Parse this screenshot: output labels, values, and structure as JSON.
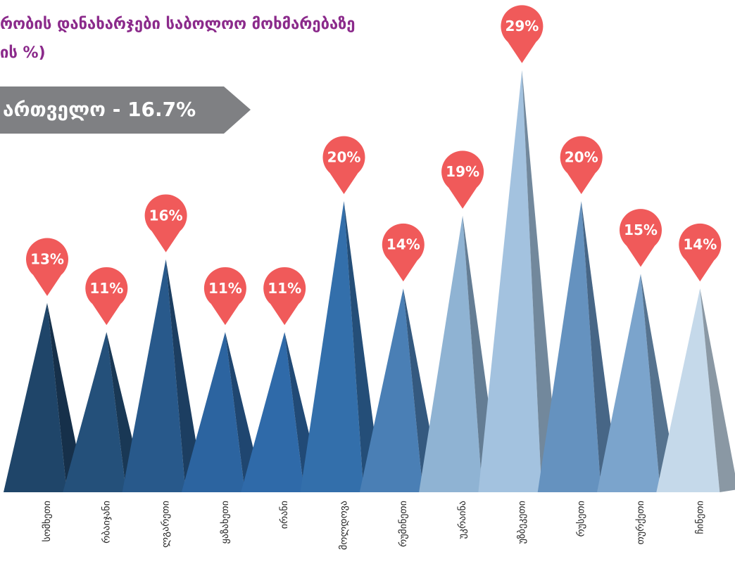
{
  "chart_data": {
    "type": "peak",
    "title": [
      "რობის დანახარჯები საბოლოო მოხმარებაზე",
      "ის %)"
    ],
    "banner": "ართველო - 16.7%",
    "categories": [
      "სომხეთი",
      "რბაიჯანი",
      "ლგარეთი",
      "ყაზახეთი",
      "ირანი",
      "მოლდოვა",
      "რუმინეთი",
      "უკრაინა",
      "უზბეკეთი",
      "რუსეთი",
      "თურქეთი",
      "ჩინეთი"
    ],
    "values": [
      13,
      11,
      16,
      11,
      11,
      20,
      14,
      19,
      29,
      20,
      15,
      14
    ],
    "value_labels": [
      "13%",
      "11%",
      "16%",
      "11%",
      "11%",
      "20%",
      "14%",
      "19%",
      "29%",
      "20%",
      "15%",
      "14%"
    ],
    "colors": [
      "#1f4569",
      "#24507a",
      "#28598b",
      "#2c64a0",
      "#2f6aa9",
      "#336fab",
      "#4a7fb5",
      "#8fb3d3",
      "#a3c2df",
      "#6592bf",
      "#7ba4cc",
      "#c5d9ea"
    ],
    "marker_color": "#f05a5a"
  }
}
